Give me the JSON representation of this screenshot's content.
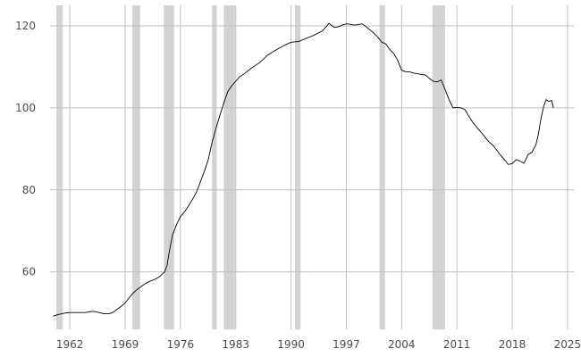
{
  "chart_data": {
    "type": "line",
    "title": "",
    "xlabel": "",
    "ylabel": "",
    "xlim": [
      1959.5,
      2025.8
    ],
    "ylim": [
      46,
      125
    ],
    "x_ticks": [
      1962,
      1969,
      1976,
      1983,
      1990,
      1997,
      2004,
      2011,
      2018,
      2025
    ],
    "x_tick_labels": [
      "1962",
      "1969",
      "1976",
      "1983",
      "1990",
      "1997",
      "2004",
      "2011",
      "2018",
      "2025"
    ],
    "y_ticks": [
      60,
      80,
      100,
      120
    ],
    "y_tick_labels": [
      "60",
      "80",
      "100",
      "120"
    ],
    "grid": true,
    "legend": "none",
    "line_color": "#000000",
    "recession_color": "#d3d3d3",
    "recessions": [
      [
        1960.3,
        1961.1
      ],
      [
        1969.9,
        1970.9
      ],
      [
        1973.9,
        1975.2
      ],
      [
        1980.0,
        1980.6
      ],
      [
        1981.5,
        1982.9
      ],
      [
        1990.5,
        1991.2
      ],
      [
        2001.2,
        2001.9
      ],
      [
        2007.9,
        2009.5
      ]
    ],
    "series": [
      {
        "x": [
          1959.9,
          1960.5,
          1961.0,
          1961.5,
          1962.0,
          1963.0,
          1964.0,
          1964.5,
          1965.0,
          1965.7,
          1966.3,
          1967.0,
          1967.5,
          1968.0,
          1968.5,
          1969.0,
          1969.5,
          1970.0,
          1970.5,
          1971.0,
          1971.5,
          1972.0,
          1972.5,
          1973.0,
          1973.5,
          1974.0,
          1974.3,
          1974.6,
          1975.0,
          1975.5,
          1976.0,
          1976.5,
          1977.0,
          1977.5,
          1978.0,
          1978.5,
          1979.0,
          1979.5,
          1980.0,
          1980.5,
          1981.0,
          1981.5,
          1982.0,
          1982.5,
          1983.0,
          1983.5,
          1984.0,
          1985.0,
          1986.0,
          1987.0,
          1988.0,
          1989.0,
          1990.0,
          1991.0,
          1992.0,
          1993.0,
          1994.0,
          1994.8,
          1995.5,
          1996.0,
          1996.5,
          1997.0,
          1997.5,
          1998.0,
          1998.5,
          1999.0,
          1999.5,
          2000.0,
          2000.5,
          2001.0,
          2001.5,
          2002.0,
          2002.5,
          2003.0,
          2003.5,
          2004.0,
          2004.5,
          2005.0,
          2005.5,
          2006.0,
          2007.0,
          2007.5,
          2008.0,
          2008.5,
          2009.0,
          2009.5,
          2010.0,
          2010.5,
          2011.0,
          2011.5,
          2012.0,
          2012.5,
          2013.0,
          2013.5,
          2014.0,
          2014.5,
          2015.0,
          2015.5,
          2016.0,
          2016.5,
          2017.0,
          2017.5,
          2018.0,
          2018.5,
          2019.0,
          2019.5,
          2020.0,
          2020.5,
          2021.0,
          2021.3,
          2021.6,
          2022.0,
          2022.3,
          2022.6,
          2023.0,
          2023.2
        ],
        "y": [
          49.2,
          49.6,
          49.8,
          50.0,
          50.1,
          50.1,
          50.1,
          50.3,
          50.4,
          50.1,
          49.8,
          49.8,
          50.2,
          50.9,
          51.6,
          52.4,
          53.7,
          54.8,
          55.7,
          56.4,
          57.1,
          57.6,
          58.0,
          58.4,
          59.1,
          60.0,
          61.5,
          65.0,
          69.0,
          71.5,
          73.5,
          74.6,
          76.0,
          77.6,
          79.3,
          81.8,
          84.4,
          87.2,
          91.5,
          95.0,
          98.2,
          101.2,
          104.0,
          105.4,
          106.5,
          107.6,
          108.2,
          109.7,
          111.0,
          112.8,
          114.0,
          115.1,
          116.0,
          116.2,
          117.0,
          117.8,
          118.8,
          120.6,
          119.6,
          119.8,
          120.2,
          120.5,
          120.4,
          120.2,
          120.3,
          120.5,
          119.8,
          119.0,
          118.2,
          117.2,
          116.0,
          115.6,
          114.2,
          113.3,
          111.6,
          109.2,
          108.8,
          108.8,
          108.5,
          108.3,
          108.0,
          107.2,
          106.5,
          106.3,
          106.8,
          104.5,
          102.0,
          100.0,
          100.1,
          100.0,
          99.6,
          98.0,
          96.5,
          95.3,
          94.2,
          93.0,
          91.8,
          91.0,
          89.8,
          88.5,
          87.4,
          86.2,
          86.4,
          87.4,
          87.0,
          86.5,
          88.6,
          89.2,
          91.0,
          93.5,
          97.0,
          100.5,
          102.0,
          101.6,
          101.8,
          100.0
        ]
      }
    ]
  }
}
